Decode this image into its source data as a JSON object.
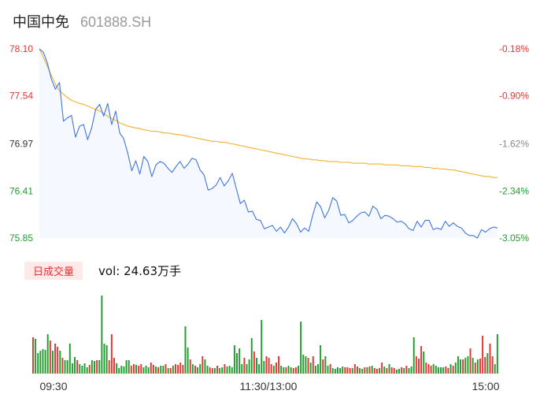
{
  "header": {
    "name": "中国中免",
    "code": "601888.SH"
  },
  "colors": {
    "price_line": "#3e75e0",
    "avg_line": "#f3b22c",
    "area_fill": "#f5f8fe",
    "up": "#e8332e",
    "down": "#1f9e2f",
    "axis_text": "#333333"
  },
  "chart_data": {
    "type": "line",
    "price_axis": {
      "ylim": [
        75.85,
        78.1
      ],
      "tick_values": [
        78.1,
        77.54,
        76.97,
        76.41,
        75.85
      ],
      "tick_labels": [
        "78.10",
        "77.54",
        "76.97",
        "76.41",
        "75.85"
      ],
      "tick_colors": [
        "#e8332e",
        "#e8332e",
        "#333333",
        "#1f9e2f",
        "#1f9e2f"
      ]
    },
    "pct_axis": {
      "tick_labels": [
        "-0.18%",
        "-0.90%",
        "-1.62%",
        "-2.34%",
        "-3.05%"
      ],
      "tick_colors": [
        "#e8332e",
        "#e8332e",
        "#888888",
        "#1f9e2f",
        "#1f9e2f"
      ]
    },
    "time_labels": [
      "09:30",
      "11:30/13:00",
      "15:00"
    ],
    "series": [
      {
        "values": [
          78.1,
          78.06,
          77.93,
          77.74,
          77.62,
          77.7,
          77.24,
          77.28,
          77.31,
          77.05,
          77.18,
          77.2,
          77.02,
          77.16,
          77.38,
          77.44,
          77.3,
          77.45,
          77.2,
          77.36,
          77.1,
          77.03,
          76.86,
          76.65,
          76.77,
          76.61,
          76.82,
          76.76,
          76.58,
          76.72,
          76.76,
          76.74,
          76.68,
          76.63,
          76.7,
          76.76,
          76.68,
          76.73,
          76.8,
          76.78,
          76.66,
          76.6,
          76.42,
          76.44,
          76.48,
          76.57,
          76.47,
          76.53,
          76.62,
          76.44,
          76.26,
          76.3,
          76.16,
          76.17,
          76.07,
          76.06,
          75.96,
          75.98,
          76.0,
          75.93,
          75.98,
          75.91,
          75.98,
          76.08,
          76.02,
          75.92,
          75.97,
          75.93,
          76.12,
          76.28,
          76.22,
          76.09,
          76.18,
          76.33,
          76.29,
          76.12,
          76.13,
          76.03,
          76.06,
          76.11,
          76.15,
          76.16,
          76.11,
          76.23,
          76.19,
          76.08,
          76.12,
          76.11,
          76.08,
          76.04,
          76.05,
          76.02,
          75.96,
          75.94,
          76.05,
          75.98,
          76.06,
          76.06,
          75.95,
          75.97,
          75.95,
          76.05,
          75.99,
          76.03,
          75.99,
          75.97,
          75.91,
          75.88,
          75.88,
          75.85,
          75.95,
          75.92,
          75.96,
          75.98,
          75.97
        ],
        "color": "#3e75e0"
      },
      {
        "values": [
          78.1,
          78.0,
          77.89,
          77.78,
          77.68,
          77.6,
          77.56,
          77.52,
          77.49,
          77.47,
          77.45,
          77.44,
          77.42,
          77.4,
          77.38,
          77.36,
          77.33,
          77.3,
          77.27,
          77.25,
          77.22,
          77.2,
          77.18,
          77.17,
          77.16,
          77.15,
          77.14,
          77.13,
          77.12,
          77.12,
          77.11,
          77.1,
          77.1,
          77.09,
          77.08,
          77.08,
          77.07,
          77.06,
          77.05,
          77.04,
          77.03,
          77.02,
          77.01,
          77.0,
          77.0,
          76.99,
          76.99,
          76.98,
          76.97,
          76.96,
          76.95,
          76.94,
          76.93,
          76.92,
          76.91,
          76.9,
          76.89,
          76.88,
          76.87,
          76.86,
          76.85,
          76.84,
          76.83,
          76.82,
          76.81,
          76.8,
          76.79,
          76.79,
          76.78,
          76.78,
          76.77,
          76.77,
          76.76,
          76.76,
          76.76,
          76.75,
          76.75,
          76.75,
          76.74,
          76.74,
          76.74,
          76.74,
          76.73,
          76.73,
          76.73,
          76.73,
          76.72,
          76.72,
          76.72,
          76.72,
          76.71,
          76.71,
          76.71,
          76.7,
          76.7,
          76.7,
          76.69,
          76.69,
          76.68,
          76.68,
          76.67,
          76.67,
          76.66,
          76.66,
          76.65,
          76.64,
          76.63,
          76.62,
          76.61,
          76.6,
          76.59,
          76.58,
          76.58,
          76.57,
          76.57
        ],
        "color": "#f3b22c"
      }
    ],
    "volume": {
      "label": "日成交量",
      "readout_prefix": "vol:",
      "readout_value": "24.63",
      "readout_unit": "万手",
      "values": [
        46,
        44,
        26,
        29,
        31,
        30,
        50,
        42,
        29,
        38,
        34,
        29,
        20,
        17,
        17,
        38,
        13,
        21,
        17,
        12,
        10,
        13,
        8,
        11,
        17,
        16,
        17,
        17,
        99,
        38,
        36,
        17,
        50,
        20,
        13,
        7,
        10,
        9,
        17,
        17,
        10,
        12,
        11,
        10,
        12,
        8,
        10,
        8,
        14,
        11,
        9,
        8,
        10,
        10,
        12,
        7,
        7,
        10,
        12,
        11,
        14,
        11,
        60,
        33,
        18,
        12,
        10,
        8,
        12,
        22,
        18,
        10,
        8,
        7,
        7,
        10,
        7,
        8,
        12,
        9,
        10,
        8,
        36,
        26,
        32,
        12,
        20,
        12,
        18,
        45,
        28,
        20,
        12,
        68,
        16,
        22,
        20,
        12,
        10,
        14,
        22,
        10,
        8,
        8,
        10,
        8,
        7,
        8,
        10,
        66,
        24,
        22,
        20,
        14,
        22,
        10,
        12,
        36,
        18,
        22,
        10,
        12,
        7,
        6,
        8,
        7,
        9,
        8,
        8,
        7,
        7,
        12,
        9,
        7,
        6,
        8,
        8,
        9,
        10,
        7,
        6,
        7,
        14,
        9,
        7,
        12,
        8,
        7,
        5,
        6,
        8,
        7,
        10,
        7,
        9,
        46,
        22,
        19,
        35,
        28,
        14,
        12,
        10,
        12,
        10,
        8,
        8,
        8,
        9,
        7,
        12,
        10,
        14,
        22,
        18,
        18,
        20,
        22,
        32,
        20,
        14,
        18,
        19,
        48,
        21,
        26,
        38,
        22,
        12,
        50
      ],
      "colors": [
        "r",
        "g",
        "g",
        "g",
        "g",
        "g",
        "g",
        "r",
        "g",
        "r",
        "r",
        "g",
        "r",
        "g",
        "g",
        "g",
        "g",
        "g",
        "r",
        "g",
        "g",
        "g",
        "g",
        "r",
        "g",
        "g",
        "r",
        "g",
        "g",
        "g",
        "g",
        "r",
        "r",
        "r",
        "g",
        "g",
        "g",
        "g",
        "g",
        "g",
        "r",
        "r",
        "g",
        "r",
        "r",
        "g",
        "g",
        "g",
        "r",
        "r",
        "g",
        "r",
        "g",
        "g",
        "r",
        "g",
        "r",
        "g",
        "r",
        "r",
        "r",
        "r",
        "g",
        "g",
        "r",
        "g",
        "r",
        "g",
        "g",
        "r",
        "g",
        "g",
        "r",
        "r",
        "g",
        "r",
        "g",
        "g",
        "r",
        "g",
        "g",
        "g",
        "g",
        "g",
        "g",
        "g",
        "r",
        "g",
        "g",
        "g",
        "r",
        "g",
        "g",
        "g",
        "g",
        "r",
        "r",
        "r",
        "g",
        "r",
        "r",
        "g",
        "g",
        "r",
        "g",
        "g",
        "r",
        "r",
        "g",
        "g",
        "g",
        "g",
        "r",
        "g",
        "r",
        "g",
        "g",
        "g",
        "r",
        "g",
        "g",
        "r",
        "g",
        "g",
        "g",
        "g",
        "g",
        "r",
        "r",
        "r",
        "g",
        "r",
        "r",
        "g",
        "g",
        "r",
        "g",
        "r",
        "g",
        "r",
        "r",
        "g",
        "r",
        "g",
        "r",
        "g",
        "r",
        "r",
        "g",
        "g",
        "r",
        "g",
        "r",
        "g",
        "g",
        "g",
        "r",
        "r",
        "r",
        "g",
        "r",
        "r",
        "r",
        "g",
        "g",
        "g",
        "g",
        "g",
        "r",
        "r",
        "g",
        "r",
        "g",
        "g",
        "g",
        "r",
        "g",
        "g",
        "r",
        "g",
        "r",
        "g",
        "r",
        "r",
        "r",
        "g",
        "r",
        "r",
        "g",
        "g"
      ]
    }
  }
}
